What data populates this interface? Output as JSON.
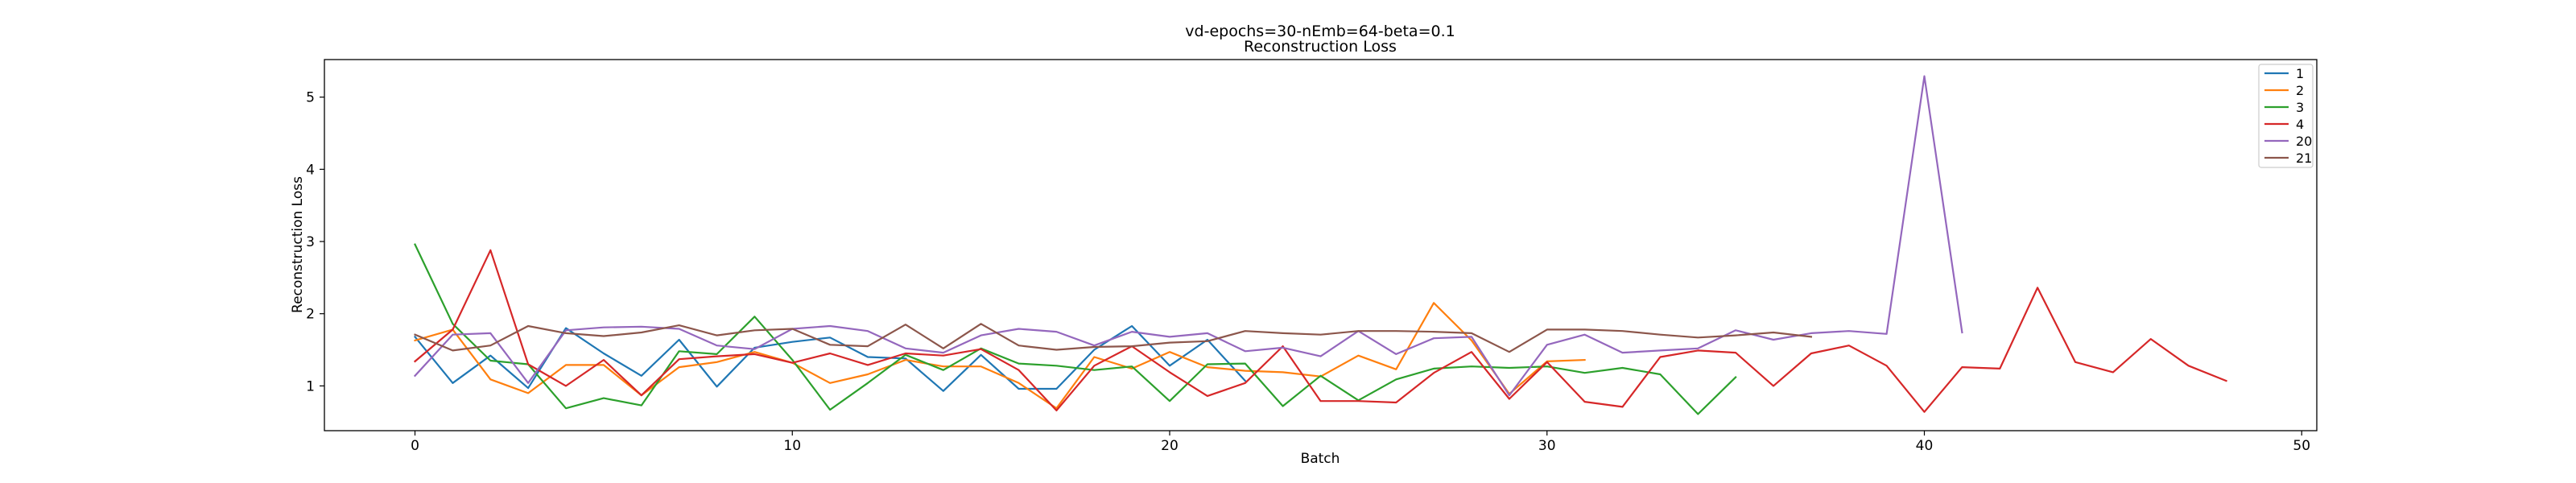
{
  "chart_data": {
    "type": "line",
    "title": "vd-epochs=30-nEmb=64-beta=0.1",
    "subtitle": "Reconstruction Loss",
    "xlabel": "Batch",
    "ylabel": "Reconstruction Loss",
    "xlim": [
      -2.4,
      50.4
    ],
    "ylim": [
      0.38,
      5.52
    ],
    "xticks": [
      "0",
      "10",
      "20",
      "30",
      "40",
      "50"
    ],
    "yticks": [
      "1",
      "2",
      "3",
      "4",
      "5"
    ],
    "grid": false,
    "legend_position": "top-right",
    "series": [
      {
        "name": "1",
        "color": "#1f77b4",
        "values": [
          1.68,
          1.04,
          1.42,
          0.97,
          1.8,
          1.45,
          1.14,
          1.64,
          0.99,
          1.53,
          1.61,
          1.67,
          1.4,
          1.38,
          0.93,
          1.43,
          0.96,
          0.96,
          1.5,
          1.83,
          1.28,
          1.64,
          1.07
        ]
      },
      {
        "name": "2",
        "color": "#ff7f0e",
        "values": [
          1.63,
          1.78,
          1.09,
          0.9,
          1.29,
          1.29,
          0.87,
          1.26,
          1.33,
          1.47,
          1.32,
          1.04,
          1.16,
          1.36,
          1.27,
          1.27,
          1.04,
          0.69,
          1.4,
          1.24,
          1.47,
          1.26,
          1.21,
          1.19,
          1.13,
          1.42,
          1.23,
          2.15,
          1.63,
          0.89,
          1.34,
          1.36
        ]
      },
      {
        "name": "3",
        "color": "#2ca02c",
        "values": [
          2.96,
          1.86,
          1.35,
          1.3,
          0.69,
          0.83,
          0.73,
          1.48,
          1.44,
          1.96,
          1.36,
          0.67,
          1.04,
          1.43,
          1.22,
          1.52,
          1.31,
          1.28,
          1.22,
          1.27,
          0.79,
          1.3,
          1.31,
          0.72,
          1.14,
          0.8,
          1.09,
          1.24,
          1.27,
          1.25,
          1.27,
          1.18,
          1.25,
          1.16,
          0.61,
          1.12
        ]
      },
      {
        "name": "4",
        "color": "#d62728",
        "values": [
          1.34,
          1.78,
          2.88,
          1.3,
          1.0,
          1.36,
          0.87,
          1.37,
          1.41,
          1.44,
          1.32,
          1.45,
          1.29,
          1.45,
          1.42,
          1.51,
          1.22,
          0.66,
          1.28,
          1.55,
          1.19,
          0.86,
          1.04,
          1.55,
          0.79,
          0.79,
          0.77,
          1.18,
          1.47,
          0.82,
          1.33,
          0.78,
          0.71,
          1.4,
          1.49,
          1.46,
          1.0,
          1.45,
          1.56,
          1.28,
          0.64,
          1.26,
          1.24,
          2.36,
          1.33,
          1.19,
          1.65,
          1.28,
          1.07
        ]
      },
      {
        "name": "20",
        "color": "#9467bd",
        "values": [
          1.14,
          1.71,
          1.73,
          1.04,
          1.77,
          1.81,
          1.82,
          1.79,
          1.56,
          1.51,
          1.79,
          1.83,
          1.76,
          1.52,
          1.46,
          1.7,
          1.79,
          1.75,
          1.56,
          1.75,
          1.68,
          1.73,
          1.48,
          1.53,
          1.41,
          1.76,
          1.44,
          1.66,
          1.68,
          0.87,
          1.57,
          1.71,
          1.46,
          1.49,
          1.52,
          1.77,
          1.64,
          1.73,
          1.76,
          1.72,
          5.29,
          1.74
        ]
      },
      {
        "name": "21",
        "color": "#8c564b",
        "values": [
          1.71,
          1.49,
          1.56,
          1.83,
          1.73,
          1.69,
          1.74,
          1.84,
          1.7,
          1.77,
          1.79,
          1.57,
          1.55,
          1.85,
          1.52,
          1.86,
          1.56,
          1.5,
          1.54,
          1.55,
          1.6,
          1.62,
          1.76,
          1.73,
          1.71,
          1.76,
          1.76,
          1.75,
          1.73,
          1.47,
          1.78,
          1.78,
          1.76,
          1.71,
          1.67,
          1.7,
          1.74,
          1.68
        ]
      }
    ]
  }
}
